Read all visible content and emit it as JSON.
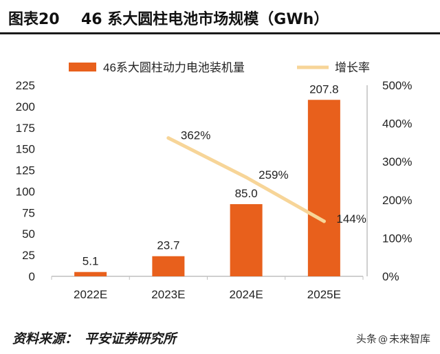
{
  "header": {
    "figure_number": "图表20",
    "title": "46 系大圆柱电池市场规模（GWh）"
  },
  "footer": {
    "source_label": "资料来源：",
    "source_org": "平安证券研究所",
    "watermark_prefix": "头条",
    "watermark_icon": "@",
    "watermark_name": "未来智库"
  },
  "colors": {
    "bar": "#E8601C",
    "line": "#F7D598",
    "axis": "#bfbfbf",
    "text": "#222222"
  },
  "chart_data": {
    "type": "bar+line",
    "categories": [
      "2022E",
      "2023E",
      "2024E",
      "2025E"
    ],
    "series": [
      {
        "name": "46系大圆柱动力电池装机量",
        "type": "bar",
        "axis": "left",
        "values": [
          5.1,
          23.7,
          85.0,
          207.8
        ],
        "labels": [
          "5.1",
          "23.7",
          "85.0",
          "207.8"
        ]
      },
      {
        "name": "增长率",
        "type": "line",
        "axis": "right",
        "values": [
          null,
          362,
          259,
          144
        ],
        "labels": [
          "",
          "362%",
          "259%",
          "144%"
        ]
      }
    ],
    "y_left": {
      "min": 0,
      "max": 225,
      "ticks": [
        0,
        25,
        50,
        75,
        100,
        125,
        150,
        175,
        200,
        225
      ],
      "tick_labels": [
        "0",
        "25",
        "50",
        "75",
        "100",
        "125",
        "150",
        "175",
        "200",
        "225"
      ]
    },
    "y_right": {
      "min": 0,
      "max": 500,
      "ticks": [
        0,
        100,
        200,
        300,
        400,
        500
      ],
      "tick_labels": [
        "0%",
        "100%",
        "200%",
        "300%",
        "400%",
        "500%"
      ]
    },
    "legend_position": "top",
    "grid": false
  }
}
